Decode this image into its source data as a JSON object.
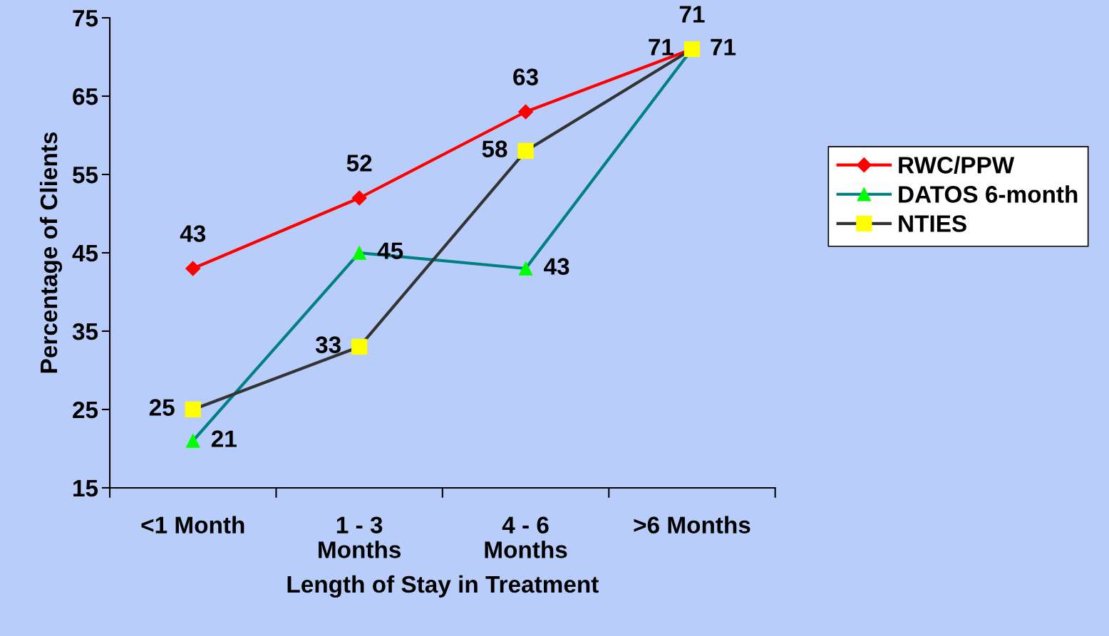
{
  "chart_data": {
    "type": "line",
    "xlabel": "Length of Stay in Treatment",
    "ylabel": "Percentage of Clients",
    "categories": [
      "<1 Month",
      "1 - 3\nMonths",
      "4 - 6\nMonths",
      ">6 Months"
    ],
    "series": [
      {
        "name": "RWC/PPW",
        "color": "#ff0000",
        "colors": [
          "#ff0000",
          "#ff0000",
          "#ff0000",
          "#ff0000"
        ],
        "marker": "diamond",
        "values": [
          43,
          52,
          63,
          71
        ]
      },
      {
        "name": "DATOS 6-month",
        "color": "#008080",
        "colors": [
          "#00ff00",
          "#00ff00",
          "#00ff00",
          "#00ff00"
        ],
        "marker": "triangle",
        "values": [
          21,
          45,
          43,
          71
        ]
      },
      {
        "name": "NTIES",
        "color": "#333333",
        "colors": [
          "#ffff00",
          "#ffff00",
          "#ffff00",
          "#ffff00"
        ],
        "marker": "square",
        "values": [
          25,
          33,
          58,
          71
        ]
      }
    ],
    "ylim": [
      15,
      75
    ],
    "yticks": [
      15,
      25,
      35,
      45,
      55,
      65,
      75
    ],
    "grid": false,
    "legend": "right",
    "data_labels": true,
    "line_style": "solid"
  }
}
